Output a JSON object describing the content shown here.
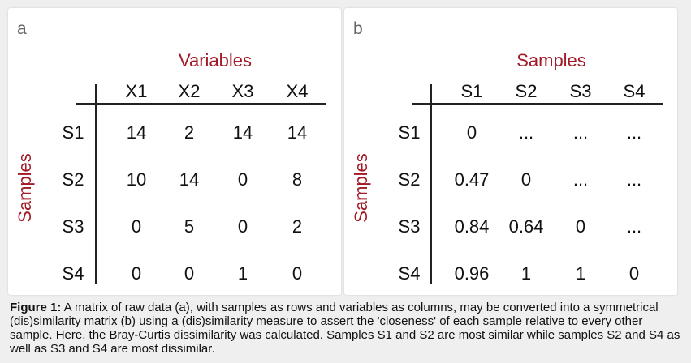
{
  "panel_a": {
    "letter": "a",
    "col_title": "Variables",
    "row_title": "Samples",
    "columns": [
      "X1",
      "X2",
      "X3",
      "X4"
    ],
    "rows": [
      {
        "label": "S1",
        "values": [
          "14",
          "2",
          "14",
          "14"
        ]
      },
      {
        "label": "S2",
        "values": [
          "10",
          "14",
          "0",
          "8"
        ]
      },
      {
        "label": "S3",
        "values": [
          "0",
          "5",
          "0",
          "2"
        ]
      },
      {
        "label": "S4",
        "values": [
          "0",
          "0",
          "1",
          "0"
        ]
      }
    ]
  },
  "panel_b": {
    "letter": "b",
    "col_title": "Samples",
    "row_title": "Samples",
    "columns": [
      "S1",
      "S2",
      "S3",
      "S4"
    ],
    "rows": [
      {
        "label": "S1",
        "values": [
          "0",
          "...",
          "...",
          "..."
        ]
      },
      {
        "label": "S2",
        "values": [
          "0.47",
          "0",
          "...",
          "..."
        ]
      },
      {
        "label": "S3",
        "values": [
          "0.84",
          "0.64",
          "0",
          "..."
        ]
      },
      {
        "label": "S4",
        "values": [
          "0.96",
          "1",
          "1",
          "0"
        ]
      }
    ]
  },
  "caption": {
    "label": "Figure 1:",
    "text": " A matrix of raw data (a), with samples as rows and variables as columns, may be converted into a symmetrical (dis)similarity matrix (b) using a (dis)similarity measure to assert the 'closeness' of each sample relative to every other sample. Here, the Bray-Curtis dissimilarity was calculated. Samples S1 and S2 are most similar while samples S2 and S4 as well as S3 and S4 are most dissimilar."
  }
}
